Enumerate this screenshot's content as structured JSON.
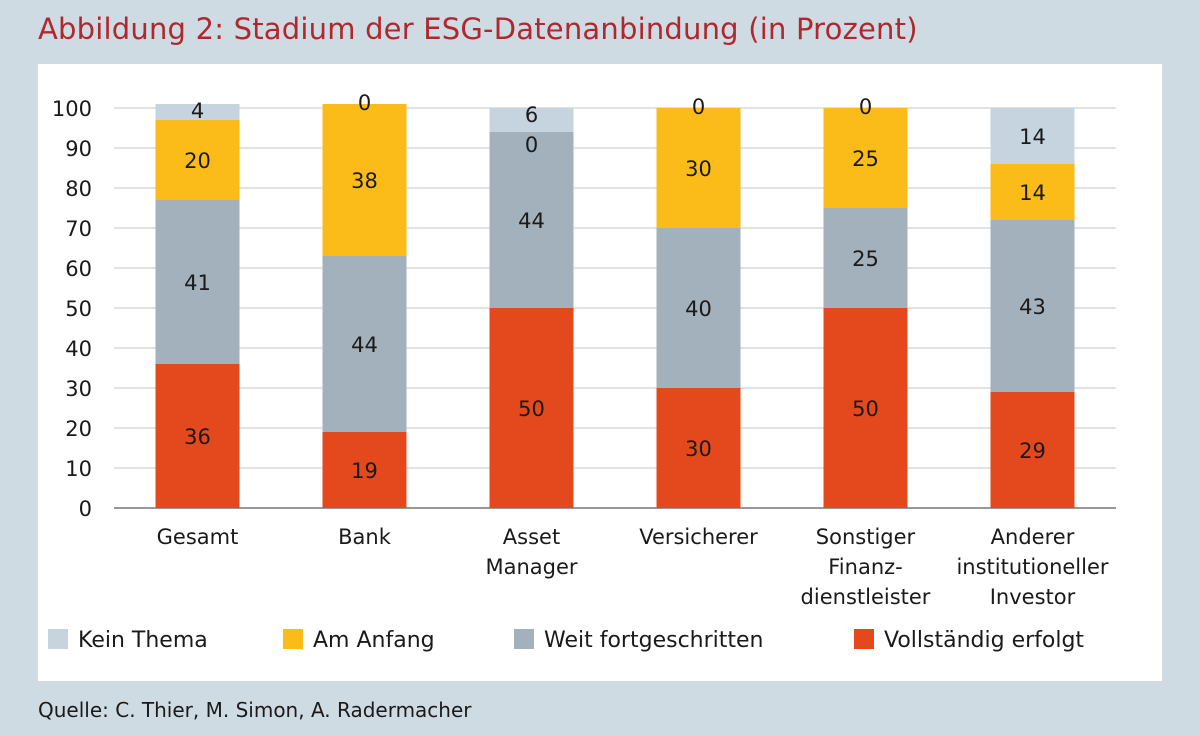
{
  "title": "Abbildung 2: Stadium der ESG-Datenanbindung (in Prozent)",
  "source": "Quelle: C. Thier, M. Simon, A. Radermacher",
  "chart_data": {
    "type": "bar",
    "stacked": true,
    "title": "Abbildung 2: Stadium der ESG-Datenanbindung (in Prozent)",
    "xlabel": "",
    "ylabel": "",
    "ylim": [
      0,
      100
    ],
    "yticks": [
      0,
      10,
      20,
      30,
      40,
      50,
      60,
      70,
      80,
      90,
      100
    ],
    "grid": true,
    "legend_position": "bottom",
    "categories": [
      [
        "Gesamt"
      ],
      [
        "Bank"
      ],
      [
        "Asset",
        "Manager"
      ],
      [
        "Versicherer"
      ],
      [
        "Sonstiger",
        "Finanz-",
        "dienstleister"
      ],
      [
        "Anderer",
        "institutioneller",
        "Investor"
      ]
    ],
    "series": [
      {
        "name": "Vollständig erfolgt",
        "color": "#e4491d",
        "values": [
          36,
          19,
          50,
          30,
          50,
          29
        ]
      },
      {
        "name": "Weit fortgeschritten",
        "color": "#a2b1bc",
        "values": [
          41,
          44,
          44,
          40,
          25,
          43
        ]
      },
      {
        "name": "Am Anfang",
        "color": "#fbbb19",
        "values": [
          20,
          38,
          0,
          30,
          25,
          14
        ]
      },
      {
        "name": "Kein Thema",
        "color": "#c5d4de",
        "values": [
          4,
          0,
          6,
          0,
          0,
          14
        ]
      }
    ],
    "legend_order": [
      "Kein Thema",
      "Am Anfang",
      "Weit fortgeschritten",
      "Vollständig erfolgt"
    ]
  }
}
